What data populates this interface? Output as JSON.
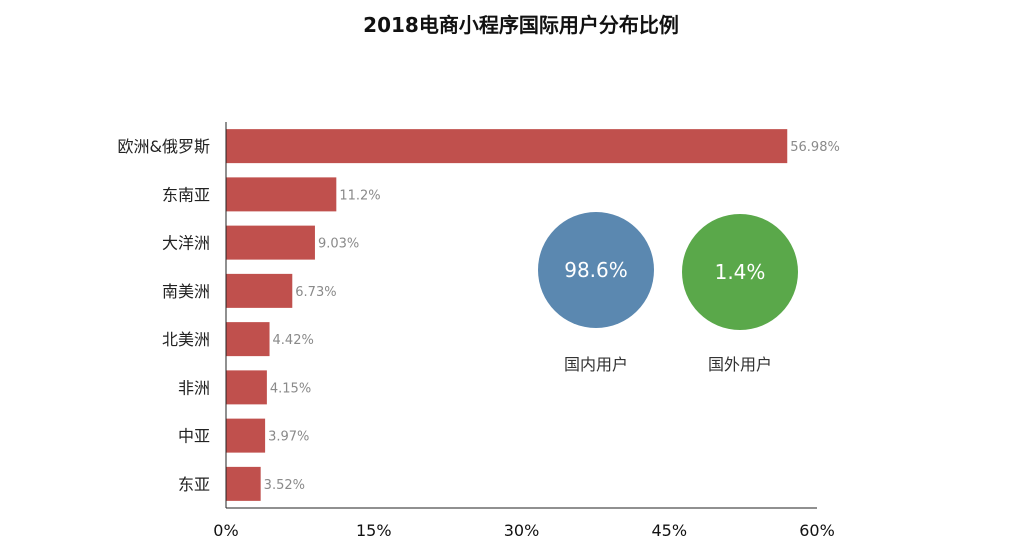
{
  "chart_data": [
    {
      "type": "bar",
      "orientation": "horizontal",
      "title": "2018电商小程序国际用户分布比例",
      "categories": [
        "欧洲&俄罗斯",
        "东南亚",
        "大洋洲",
        "南美洲",
        "北美洲",
        "非洲",
        "中亚",
        "东亚"
      ],
      "values": [
        56.98,
        11.2,
        9.03,
        6.73,
        4.42,
        4.15,
        3.97,
        3.52
      ],
      "value_labels": [
        "56.98%",
        "11.2%",
        "9.03%",
        "6.73%",
        "4.42%",
        "4.15%",
        "3.97%",
        "3.52%"
      ],
      "xlim": [
        0,
        60
      ],
      "x_ticks": [
        0,
        15,
        30,
        45,
        60
      ],
      "x_tick_labels": [
        "0%",
        "15%",
        "30%",
        "45%",
        "60%"
      ],
      "grid": false,
      "color": "#c0504d"
    },
    {
      "type": "bubble",
      "items": [
        {
          "name": "国内用户",
          "value": 98.6,
          "label": "98.6%",
          "color": "#5b88b0"
        },
        {
          "name": "国外用户",
          "value": 1.4,
          "label": "1.4%",
          "color": "#5aa84a"
        }
      ]
    }
  ]
}
